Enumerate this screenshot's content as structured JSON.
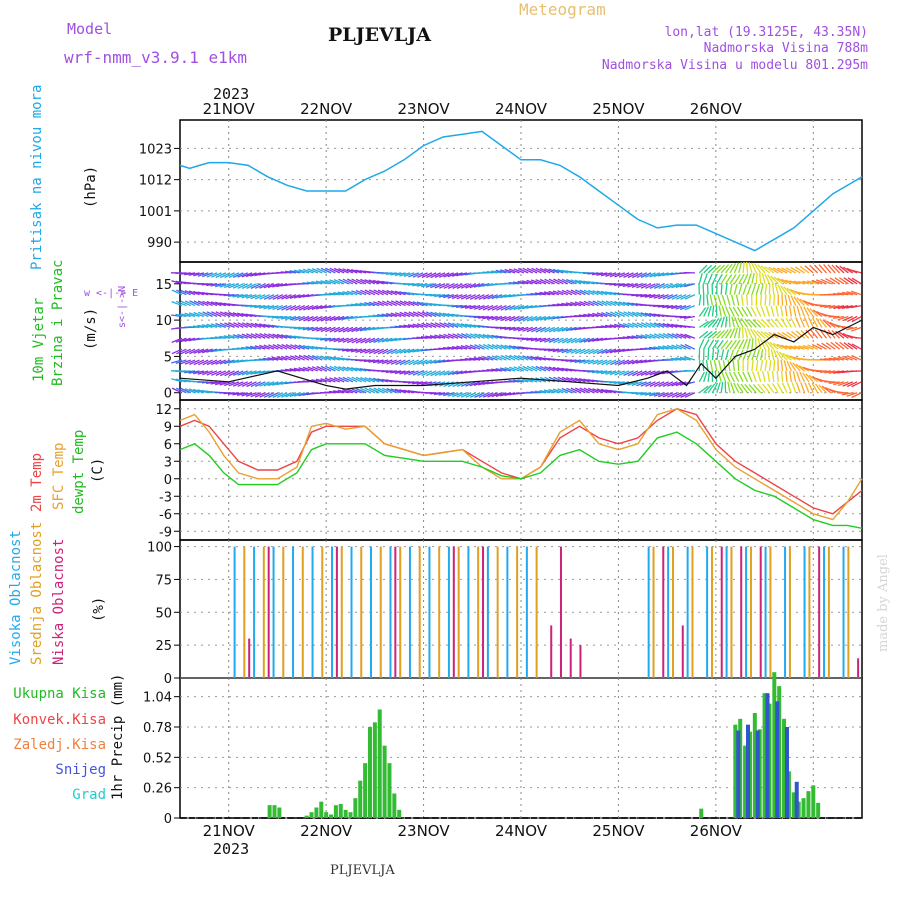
{
  "header": {
    "model_label": "Model",
    "model_name": "wrf-nmm_v3.9.1 e1km",
    "title": "PLJEVLJA",
    "meteogram_label": "Meteogram",
    "coords": "lon,lat (19.3125E, 43.35N)",
    "altitude": "Nadmorska Visina 788m",
    "model_altitude": "Nadmorska Visina u modelu 801.295m",
    "year_top": "2023",
    "year_bottom": "2023",
    "footer": "PLJEVLJA",
    "watermark": "made by Angel"
  },
  "colors": {
    "pressure": "#1fa8e8",
    "t2m": "#ee4444",
    "sfc": "#e8a030",
    "dewpt": "#22cc22",
    "high_cloud": "#22aaee",
    "mid_cloud": "#e0a020",
    "low_cloud": "#cc2277",
    "total_precip": "#33bb33",
    "snow": "#3355cc",
    "grad": "#22cccc"
  },
  "panels": {
    "pressure": {
      "label_a": "Pritisak na nivou mora",
      "unit": "(hPa)"
    },
    "wind": {
      "label_a": "10m Vjetar",
      "label_b": "Brzina i Pravac",
      "unit": "(m/s)",
      "compass": "w <-|-> E",
      "compass_v": "s<-|->N"
    },
    "temp": {
      "label_a": "2m Temp",
      "label_b": "SFC Temp",
      "label_c": "dewpt Temp",
      "unit": "(C)"
    },
    "cloud": {
      "label_a": "Visoka Oblacnost",
      "label_b": "Srednja Oblacnost",
      "label_c": "Niska Oblacnost",
      "unit": "(%)"
    },
    "precip": {
      "legend": [
        "Ukupna Kisa",
        "Konvek.Kisa",
        "Zaledj.Kisa",
        "Snijeg",
        "Grad"
      ],
      "unit": "1hr Precip (mm)"
    }
  },
  "chart_data": [
    {
      "type": "line",
      "title": "Pritisak na nivou mora",
      "ylabel": "(hPa)",
      "x_days": [
        "21NOV",
        "22NOV",
        "23NOV",
        "24NOV",
        "25NOV",
        "26NOV"
      ],
      "x": [
        -0.5,
        -0.4,
        -0.3,
        -0.2,
        0,
        0.2,
        0.4,
        0.6,
        0.8,
        1.0,
        1.2,
        1.4,
        1.6,
        1.8,
        2.0,
        2.2,
        2.4,
        2.6,
        2.8,
        3.0,
        3.2,
        3.4,
        3.6,
        3.8,
        4.0,
        4.2,
        4.4,
        4.6,
        4.8,
        5.0,
        5.2,
        5.4,
        5.6,
        5.8,
        6.0,
        6.2,
        6.4,
        6.5
      ],
      "values": [
        1017,
        1016,
        1017,
        1018,
        1018,
        1017,
        1013,
        1010,
        1008,
        1008,
        1008,
        1012,
        1015,
        1019,
        1024,
        1027,
        1028,
        1029,
        1024,
        1019,
        1019,
        1017,
        1013,
        1008,
        1003,
        998,
        995,
        996,
        996,
        993,
        990,
        987,
        991,
        995,
        1001,
        1007,
        1011,
        1013
      ],
      "yticks": [
        990,
        1001,
        1012,
        1023
      ],
      "ylim": [
        983,
        1033
      ],
      "xlim": [
        -0.5,
        6.5
      ]
    },
    {
      "type": "line",
      "title": "10m Vjetar Brzina i Pravac",
      "ylabel": "(m/s)",
      "yticks": [
        0,
        5,
        10,
        15
      ],
      "ylim": [
        -1,
        18
      ],
      "series": [
        {
          "name": "Brzina",
          "x": [
            -0.5,
            0,
            0.5,
            1.0,
            1.2,
            1.5,
            2.0,
            2.5,
            3.0,
            3.5,
            4.0,
            4.3,
            4.5,
            4.7,
            4.85,
            5.0,
            5.2,
            5.4,
            5.6,
            5.8,
            6.0,
            6.2,
            6.5
          ],
          "values": [
            2,
            1.5,
            3,
            1,
            0.5,
            1,
            1,
            1.5,
            2,
            1.5,
            1,
            2,
            3,
            1,
            4,
            2,
            5,
            6,
            8,
            7,
            9,
            8,
            10
          ]
        }
      ]
    },
    {
      "type": "line",
      "title": "2m Temp / SFC Temp / dewpt Temp",
      "ylabel": "(C)",
      "yticks": [
        -9,
        -6,
        -3,
        0,
        3,
        6,
        9,
        12
      ],
      "ylim": [
        -10.5,
        13.5
      ],
      "x": [
        -0.5,
        -0.35,
        -0.2,
        -0.05,
        0.1,
        0.3,
        0.5,
        0.7,
        0.85,
        1.0,
        1.2,
        1.4,
        1.6,
        1.8,
        2.0,
        2.2,
        2.4,
        2.6,
        2.8,
        3.0,
        3.2,
        3.4,
        3.6,
        3.8,
        4.0,
        4.2,
        4.4,
        4.6,
        4.8,
        5.0,
        5.2,
        5.4,
        5.6,
        5.8,
        6.0,
        6.2,
        6.35,
        6.5
      ],
      "series": [
        {
          "name": "2m Temp",
          "values": [
            9,
            10,
            9,
            6,
            3,
            1.5,
            1.5,
            3,
            8,
            9,
            9,
            9,
            6,
            5,
            4,
            4.5,
            5,
            3,
            1,
            0,
            2,
            7,
            9,
            7,
            6,
            7,
            10,
            12,
            11,
            6,
            3,
            1,
            -1,
            -3,
            -5,
            -6,
            -4,
            -2
          ]
        },
        {
          "name": "SFC Temp",
          "values": [
            10,
            11,
            8,
            4,
            1,
            0,
            0,
            2,
            9,
            9.5,
            8.5,
            9,
            6,
            5,
            4,
            4.5,
            5,
            2,
            0,
            0,
            2,
            8,
            10,
            6,
            5,
            6,
            11,
            12,
            10,
            5,
            2,
            0,
            -2,
            -4,
            -6,
            -7,
            -4,
            0
          ]
        },
        {
          "name": "dewpt Temp",
          "values": [
            5,
            6,
            4,
            1,
            -1,
            -1,
            -1,
            1,
            5,
            6,
            6,
            6,
            4,
            3.5,
            3,
            3,
            3,
            2,
            0.5,
            0,
            1,
            4,
            5,
            3,
            2.5,
            3,
            7,
            8,
            6,
            3,
            0,
            -2,
            -3,
            -5,
            -7,
            -8,
            -8,
            -8.5
          ]
        }
      ]
    },
    {
      "type": "bar",
      "title": "Visoka / Srednja / Niska Oblacnost",
      "ylabel": "(%)",
      "yticks": [
        0,
        25,
        50,
        75,
        100
      ],
      "ylim": [
        0,
        105
      ],
      "series": [
        {
          "name": "Visoka Oblacnost",
          "x": [
            0.05,
            0.25,
            0.45,
            0.65,
            0.85,
            1.05,
            1.25,
            1.45,
            1.65,
            1.85,
            2.05,
            2.25,
            2.45,
            2.65,
            2.85,
            3.05,
            4.3,
            4.5,
            4.7,
            4.9,
            5.1,
            5.3,
            5.5,
            5.7,
            5.9,
            6.1,
            6.3
          ],
          "values": [
            100,
            100,
            100,
            100,
            100,
            100,
            100,
            100,
            100,
            100,
            100,
            100,
            100,
            100,
            100,
            100,
            100,
            100,
            100,
            100,
            100,
            100,
            100,
            100,
            100,
            100,
            100
          ]
        },
        {
          "name": "Srednja Oblacnost",
          "x": [
            0.15,
            0.35,
            0.55,
            0.75,
            0.95,
            1.15,
            1.35,
            1.55,
            1.75,
            1.95,
            2.15,
            2.35,
            2.55,
            2.75,
            2.95,
            3.15,
            4.35,
            4.55,
            4.75,
            4.95,
            5.15,
            5.35,
            5.55,
            5.75,
            5.95,
            6.15,
            6.35
          ],
          "values": [
            100,
            100,
            100,
            100,
            100,
            100,
            100,
            100,
            100,
            100,
            100,
            100,
            100,
            100,
            100,
            100,
            100,
            100,
            100,
            100,
            100,
            100,
            100,
            100,
            100,
            100,
            100
          ]
        },
        {
          "name": "Niska Oblacnost",
          "x": [
            0.2,
            0.4,
            1.1,
            1.7,
            2.3,
            2.6,
            3.3,
            3.4,
            3.5,
            3.6,
            4.45,
            4.65,
            5.05,
            5.25,
            5.45,
            6.05,
            6.45
          ],
          "values": [
            30,
            100,
            100,
            100,
            100,
            100,
            40,
            100,
            30,
            25,
            100,
            40,
            100,
            100,
            100,
            100,
            15
          ]
        }
      ]
    },
    {
      "type": "bar",
      "title": "1hr Precip",
      "ylabel": "1hr Precip (mm)",
      "yticks": [
        0,
        0.26,
        0.52,
        0.78,
        1.04
      ],
      "ylim": [
        0,
        1.2
      ],
      "series": [
        {
          "name": "Ukupna Kisa",
          "x": [
            0.42,
            0.47,
            0.52,
            0.8,
            0.85,
            0.9,
            0.95,
            1.0,
            1.05,
            1.1,
            1.15,
            1.2,
            1.25,
            1.3,
            1.35,
            1.4,
            1.45,
            1.5,
            1.55,
            1.6,
            1.65,
            1.7,
            1.75,
            4.85,
            5.2,
            5.25,
            5.3,
            5.35,
            5.4,
            5.45,
            5.5,
            5.55,
            5.6,
            5.65,
            5.7,
            5.75,
            5.8,
            5.85,
            5.9,
            5.95,
            6.0,
            6.05
          ],
          "values": [
            0.11,
            0.11,
            0.09,
            0.02,
            0.05,
            0.09,
            0.14,
            0.05,
            0.03,
            0.11,
            0.12,
            0.07,
            0.05,
            0.17,
            0.32,
            0.47,
            0.78,
            0.82,
            0.93,
            0.62,
            0.47,
            0.21,
            0.07,
            0.08,
            0.8,
            0.85,
            0.62,
            0.74,
            0.9,
            0.76,
            1.07,
            0.98,
            1.25,
            1.13,
            0.85,
            0.4,
            0.22,
            0.14,
            0.17,
            0.23,
            0.28,
            0.13
          ]
        },
        {
          "name": "Snijeg",
          "x": [
            5.23,
            5.33,
            5.43,
            5.53,
            5.63,
            5.73,
            5.83
          ],
          "values": [
            0.75,
            0.8,
            0.75,
            1.07,
            1.0,
            0.78,
            0.31
          ]
        }
      ]
    }
  ]
}
